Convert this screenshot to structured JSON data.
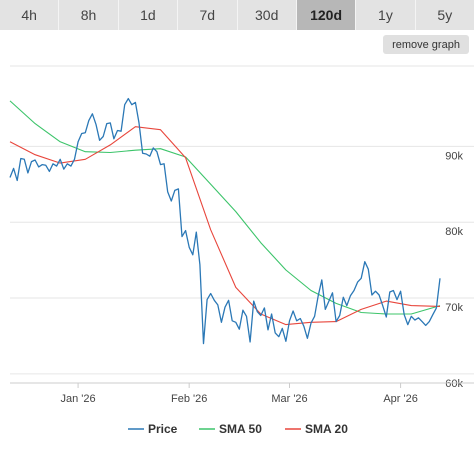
{
  "tabs": [
    {
      "label": "4h",
      "active": false
    },
    {
      "label": "8h",
      "active": false
    },
    {
      "label": "1d",
      "active": false
    },
    {
      "label": "7d",
      "active": false
    },
    {
      "label": "30d",
      "active": false
    },
    {
      "label": "120d",
      "active": true
    },
    {
      "label": "1y",
      "active": false
    },
    {
      "label": "5y",
      "active": false
    }
  ],
  "remove_graph_label": "remove graph",
  "chart_data": {
    "type": "line",
    "title": "",
    "xlabel": "",
    "ylabel": "",
    "x_ticks": [
      "Jan '26",
      "Feb '26",
      "Mar '26",
      "Apr '26"
    ],
    "y_ticks": [
      "60k",
      "70k",
      "80k",
      "90k"
    ],
    "y_tick_values": [
      60000,
      70000,
      80000,
      90000
    ],
    "xlim": [
      "2025-12-13",
      "2026-04-12"
    ],
    "ylim": [
      58800,
      100600
    ],
    "grid": true,
    "legend_position": "bottom",
    "series": [
      {
        "name": "Price",
        "color": "#2b78b6",
        "x": [
          "2025-12-13",
          "2025-12-14",
          "2025-12-15",
          "2025-12-16",
          "2025-12-17",
          "2025-12-18",
          "2025-12-19",
          "2025-12-20",
          "2025-12-21",
          "2025-12-22",
          "2025-12-23",
          "2025-12-24",
          "2025-12-25",
          "2025-12-26",
          "2025-12-27",
          "2025-12-28",
          "2025-12-29",
          "2025-12-30",
          "2025-12-31",
          "2026-01-01",
          "2026-01-02",
          "2026-01-03",
          "2026-01-04",
          "2026-01-05",
          "2026-01-06",
          "2026-01-07",
          "2026-01-08",
          "2026-01-09",
          "2026-01-10",
          "2026-01-11",
          "2026-01-12",
          "2026-01-13",
          "2026-01-14",
          "2026-01-15",
          "2026-01-16",
          "2026-01-17",
          "2026-01-18",
          "2026-01-19",
          "2026-01-20",
          "2026-01-21",
          "2026-01-22",
          "2026-01-23",
          "2026-01-24",
          "2026-01-25",
          "2026-01-26",
          "2026-01-27",
          "2026-01-28",
          "2026-01-29",
          "2026-01-30",
          "2026-01-31",
          "2026-02-01",
          "2026-02-02",
          "2026-02-03",
          "2026-02-04",
          "2026-02-05",
          "2026-02-06",
          "2026-02-07",
          "2026-02-08",
          "2026-02-09",
          "2026-02-10",
          "2026-02-11",
          "2026-02-12",
          "2026-02-13",
          "2026-02-14",
          "2026-02-15",
          "2026-02-16",
          "2026-02-17",
          "2026-02-18",
          "2026-02-19",
          "2026-02-20",
          "2026-02-21",
          "2026-02-22",
          "2026-02-23",
          "2026-02-24",
          "2026-02-25",
          "2026-02-26",
          "2026-02-27",
          "2026-02-28",
          "2026-03-01",
          "2026-03-02",
          "2026-03-03",
          "2026-03-04",
          "2026-03-05",
          "2026-03-06",
          "2026-03-07",
          "2026-03-08",
          "2026-03-09",
          "2026-03-10",
          "2026-03-11",
          "2026-03-12",
          "2026-03-13",
          "2026-03-14",
          "2026-03-15",
          "2026-03-16",
          "2026-03-17",
          "2026-03-18",
          "2026-03-19",
          "2026-03-20",
          "2026-03-21",
          "2026-03-22",
          "2026-03-23",
          "2026-03-24",
          "2026-03-25",
          "2026-03-26",
          "2026-03-27",
          "2026-03-28",
          "2026-03-29",
          "2026-03-30",
          "2026-03-31",
          "2026-04-01",
          "2026-04-02",
          "2026-04-03",
          "2026-04-04",
          "2026-04-05",
          "2026-04-06",
          "2026-04-07",
          "2026-04-08",
          "2026-04-09",
          "2026-04-10",
          "2026-04-11",
          "2026-04-12"
        ],
        "values": [
          85900,
          87100,
          85500,
          88400,
          88300,
          86500,
          88000,
          88200,
          87300,
          87600,
          87500,
          86700,
          87700,
          87400,
          88300,
          87000,
          87700,
          87400,
          88300,
          90600,
          91700,
          91800,
          93400,
          94300,
          92900,
          90800,
          91300,
          93000,
          93100,
          91000,
          92100,
          92000,
          95500,
          96300,
          95500,
          95800,
          93100,
          89100,
          89000,
          88700,
          89800,
          89300,
          87600,
          87700,
          84000,
          82800,
          84200,
          84400,
          78100,
          78900,
          76700,
          75700,
          78700,
          74400,
          64000,
          69800,
          70600,
          69700,
          69100,
          66800,
          68800,
          69700,
          67000,
          66800,
          65900,
          68400,
          67600,
          64200,
          69600,
          68200,
          67700,
          68700,
          65800,
          67900,
          65400,
          64900,
          66000,
          64300,
          67000,
          68300,
          67000,
          67300,
          66300,
          64700,
          66700,
          67600,
          70300,
          72400,
          68500,
          69600,
          70700,
          66900,
          67700,
          70100,
          69000,
          70300,
          71000,
          72100,
          72600,
          74800,
          73800,
          70400,
          70900,
          70400,
          69000,
          67500,
          70800,
          71000,
          69800,
          70900,
          67800,
          66500,
          67600,
          67100,
          67400,
          66900,
          66400,
          66900,
          67800,
          68700,
          72600
        ]
      },
      {
        "name": "SMA 50",
        "color": "#3cc46a",
        "x": [
          "2025-12-13",
          "2025-12-20",
          "2025-12-27",
          "2026-01-03",
          "2026-01-10",
          "2026-01-17",
          "2026-01-24",
          "2026-01-31",
          "2026-02-07",
          "2026-02-14",
          "2026-02-21",
          "2026-02-28",
          "2026-03-07",
          "2026-03-14",
          "2026-03-21",
          "2026-03-28",
          "2026-04-04",
          "2026-04-12"
        ],
        "values": [
          96000,
          93000,
          90600,
          89300,
          89200,
          89500,
          89700,
          88600,
          85000,
          81400,
          77300,
          73700,
          71000,
          69300,
          68100,
          67900,
          67900,
          69000
        ]
      },
      {
        "name": "SMA 20",
        "color": "#e8463c",
        "x": [
          "2025-12-13",
          "2025-12-20",
          "2025-12-27",
          "2026-01-03",
          "2026-01-10",
          "2026-01-17",
          "2026-01-24",
          "2026-01-31",
          "2026-02-07",
          "2026-02-14",
          "2026-02-21",
          "2026-02-28",
          "2026-03-07",
          "2026-03-14",
          "2026-03-21",
          "2026-03-28",
          "2026-04-04",
          "2026-04-12"
        ],
        "values": [
          90600,
          88900,
          87800,
          88300,
          90200,
          92600,
          92200,
          88500,
          79000,
          71400,
          67900,
          66500,
          66800,
          66900,
          68500,
          69600,
          69000,
          68900
        ]
      }
    ]
  }
}
